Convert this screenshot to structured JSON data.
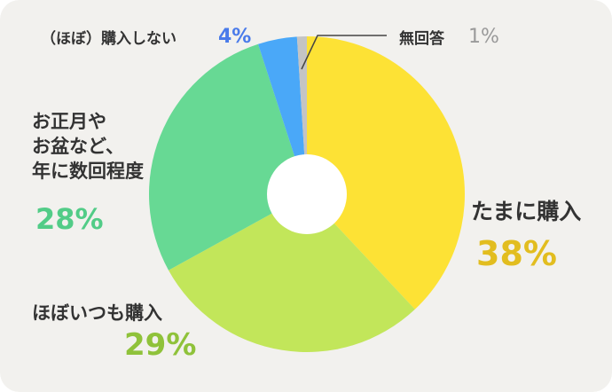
{
  "chart_data": {
    "type": "pie",
    "donut": true,
    "start_angle_deg": 0,
    "direction": "clockwise",
    "categories": [
      "たまに購入",
      "ほぼいつも購入",
      "お正月やお盆など、年に数回程度",
      "（ほぼ）購入しない",
      "無回答"
    ],
    "values": [
      38,
      29,
      28,
      4,
      1
    ],
    "unit": "%",
    "colors": [
      "#fde235",
      "#c2e65a",
      "#67d994",
      "#4aa8f8",
      "#c4c4c4"
    ],
    "label_colors": [
      "#e2bd1f",
      "#8fc23a",
      "#52cc87",
      "#4a7bea",
      "#9a9a9a"
    ],
    "labels": {
      "tamani": "たまに購入",
      "hobo_itsumo": "ほぼいつも購入",
      "oshogatsu_line1": "お正月や",
      "oshogatsu_line2": "お盆など、",
      "oshogatsu_line3": "年に数回程度",
      "konyu_shinai": "（ほぼ）購入しない",
      "mukaito": "無回答"
    },
    "value_labels": {
      "tamani": "38%",
      "hobo_itsumo": "29%",
      "oshogatsu": "28%",
      "konyu_shinai": "4%",
      "mukaito": "1%"
    },
    "title": "",
    "legend": "none"
  }
}
